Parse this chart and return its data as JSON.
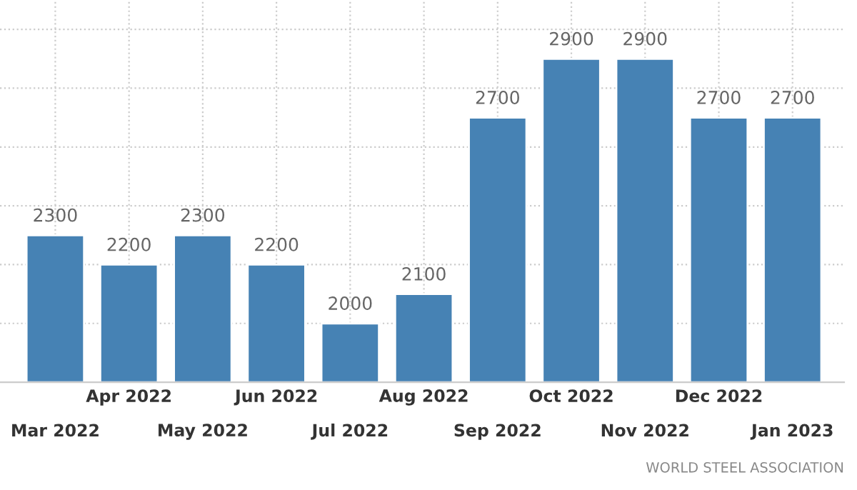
{
  "chart_data": {
    "type": "bar",
    "categories": [
      "Mar 2022",
      "Apr 2022",
      "May 2022",
      "Jun 2022",
      "Jul 2022",
      "Aug 2022",
      "Sep 2022",
      "Oct 2022",
      "Nov 2022",
      "Dec 2022",
      "Jan 2023"
    ],
    "values": [
      2300,
      2200,
      2300,
      2200,
      2000,
      2100,
      2700,
      2900,
      2900,
      2700,
      2700
    ],
    "color": "#4682b4",
    "ylim": [
      1800,
      3100
    ],
    "yticks": [
      {
        "value": 2000,
        "label": null
      },
      {
        "value": 2200,
        "label": null
      },
      {
        "value": 2400,
        "label": null
      },
      {
        "value": 2600,
        "label": null
      },
      {
        "value": 2800,
        "label": null
      },
      {
        "value": 3000,
        "label": null
      }
    ],
    "tick_labels": "x",
    "grid": true,
    "data_labels": true,
    "annotations": [
      "WORLD STEEL ASSOCIATION"
    ]
  }
}
